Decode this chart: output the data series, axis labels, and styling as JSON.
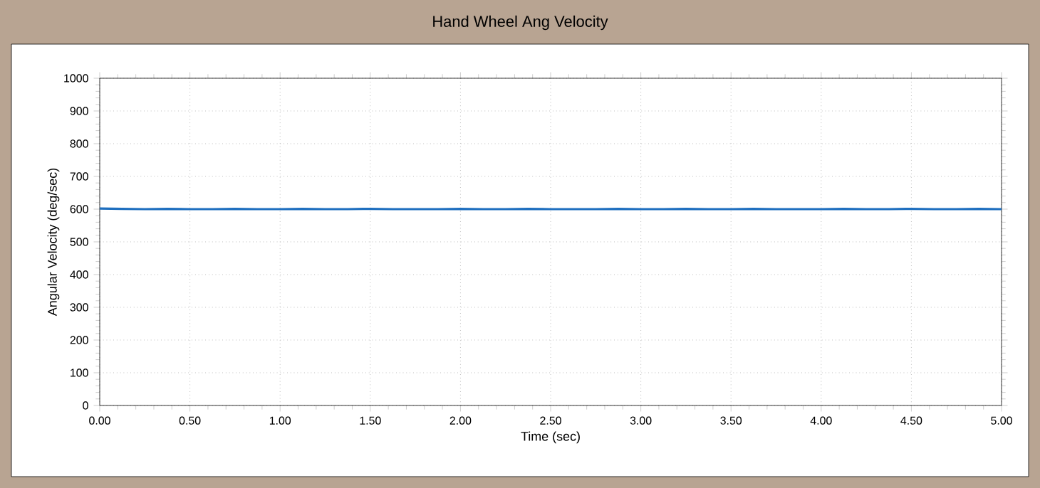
{
  "chart_data": {
    "type": "line",
    "title": "Hand Wheel Ang Velocity",
    "xlabel": "Time (sec)",
    "ylabel": "Angular Velocity (deg/sec)",
    "x": [
      0,
      0.125,
      0.25,
      0.375,
      0.5,
      0.625,
      0.75,
      0.875,
      1,
      1.125,
      1.25,
      1.375,
      1.5,
      1.625,
      1.75,
      1.875,
      2,
      2.125,
      2.25,
      2.375,
      2.5,
      2.625,
      2.75,
      2.875,
      3,
      3.125,
      3.25,
      3.375,
      3.5,
      3.625,
      3.75,
      3.875,
      4,
      4.125,
      4.25,
      4.375,
      4.5,
      4.625,
      4.75,
      4.875,
      5
    ],
    "series": [
      {
        "color": "#1f6fbf",
        "values": [
          602,
          601,
          600,
          601,
          600,
          600,
          601,
          600,
          600,
          601,
          600,
          600,
          601,
          600,
          600,
          600,
          601,
          600,
          600,
          601,
          600,
          600,
          600,
          601,
          600,
          600,
          601,
          600,
          600,
          601,
          600,
          600,
          600,
          601,
          600,
          600,
          601,
          600,
          600,
          601,
          600
        ]
      }
    ],
    "xlim": [
      0,
      5
    ],
    "xticks": [
      {
        "value": 0,
        "label": "0.00"
      },
      {
        "value": 0.5,
        "label": "0.50"
      },
      {
        "value": 1,
        "label": "1.00"
      },
      {
        "value": 1.5,
        "label": "1.50"
      },
      {
        "value": 2,
        "label": "2.00"
      },
      {
        "value": 2.5,
        "label": "2.50"
      },
      {
        "value": 3,
        "label": "3.00"
      },
      {
        "value": 3.5,
        "label": "3.50"
      },
      {
        "value": 4,
        "label": "4.00"
      },
      {
        "value": 4.5,
        "label": "4.50"
      },
      {
        "value": 5,
        "label": "5.00"
      }
    ],
    "ylim": [
      0,
      1000
    ],
    "yticks": [
      0,
      100,
      200,
      300,
      400,
      500,
      600,
      700,
      800,
      900,
      1000
    ],
    "grid": true,
    "marker": "none",
    "line_style": "solid"
  }
}
